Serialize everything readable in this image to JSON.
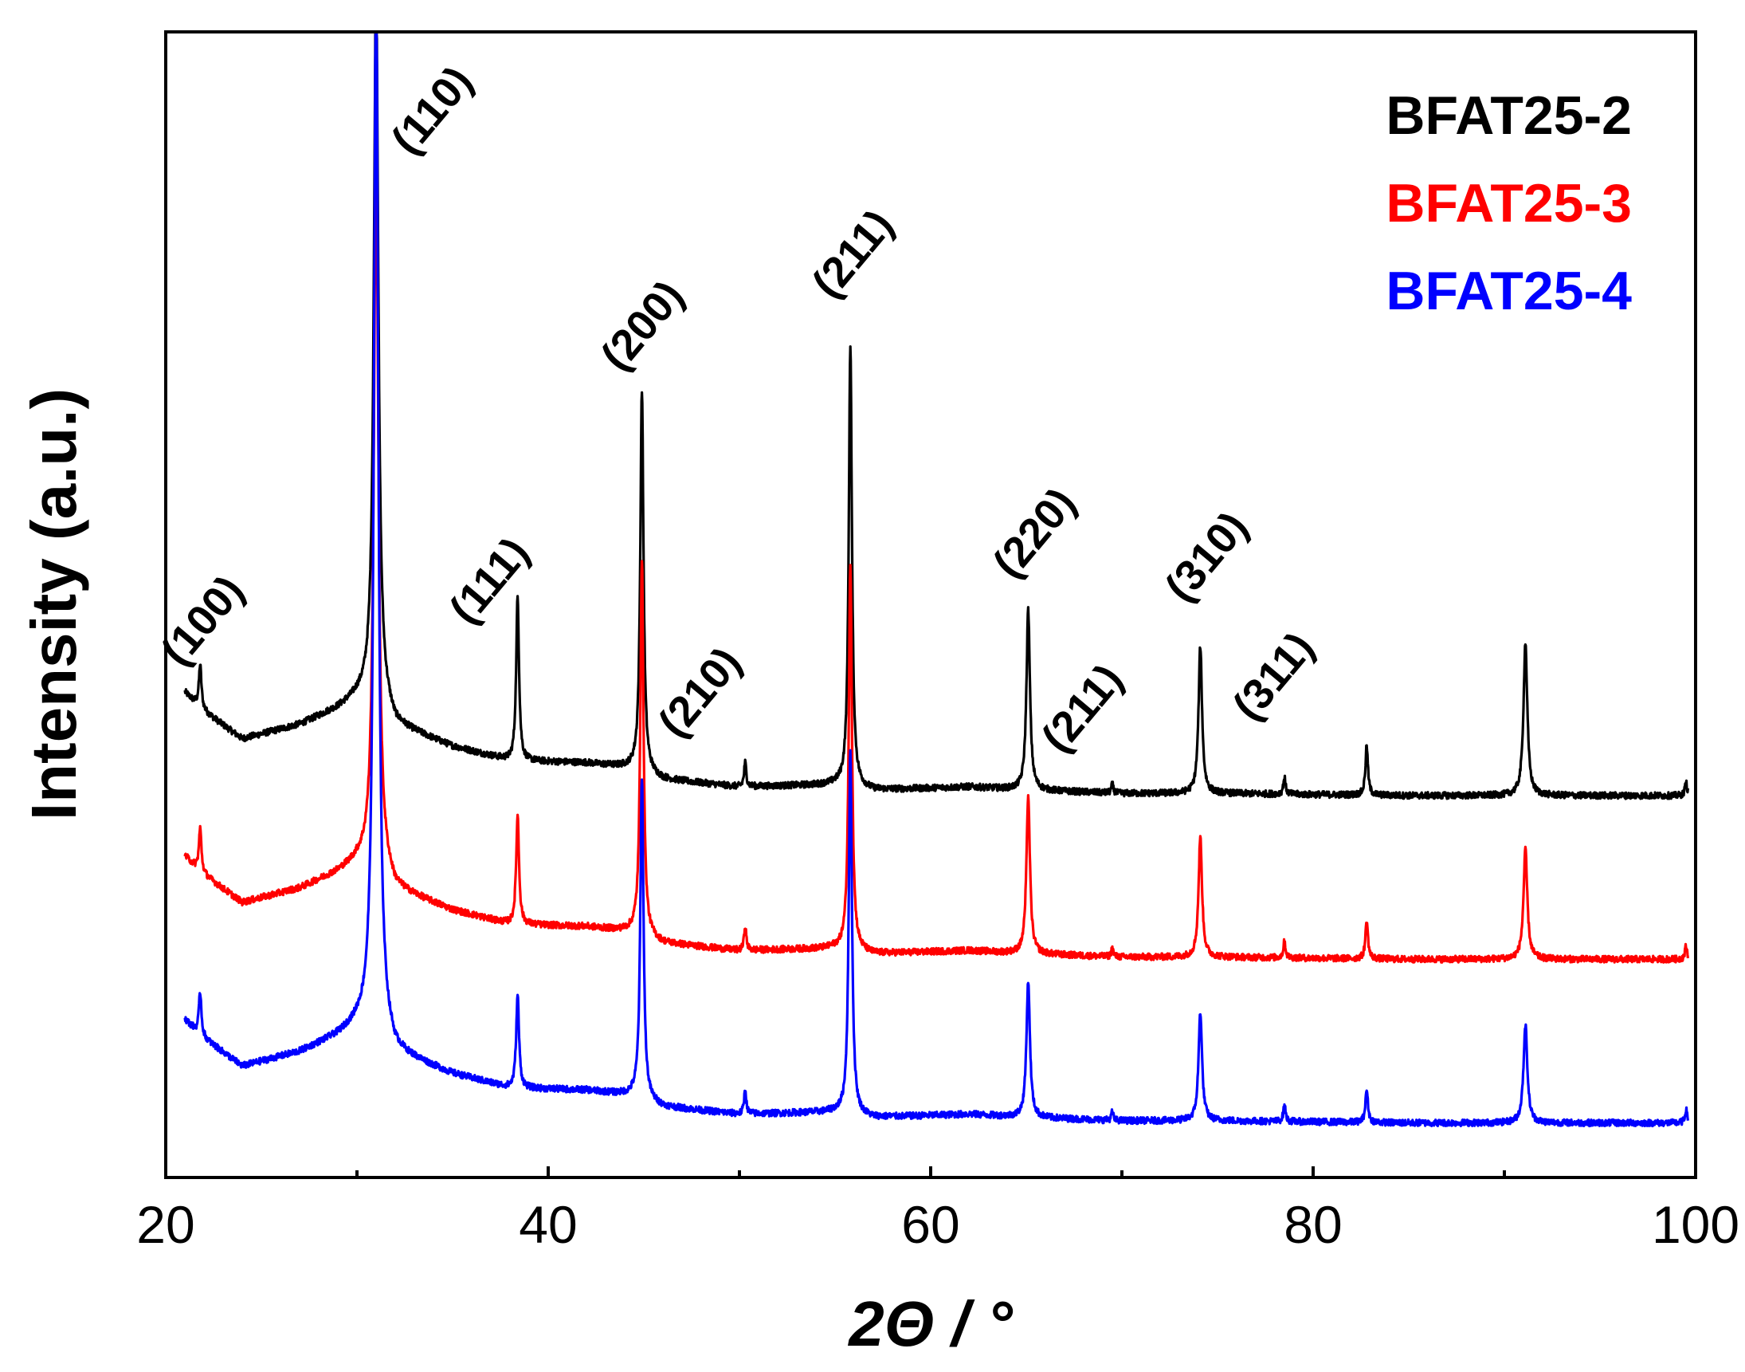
{
  "chart_data": {
    "type": "line",
    "title": "",
    "xlabel": "2Θ / °",
    "ylabel": "Intensity (a.u.)",
    "xlim": [
      20,
      100
    ],
    "ylim": [
      0,
      10.5
    ],
    "x_ticks": [
      20,
      40,
      60,
      80,
      100
    ],
    "x_minor_ticks": [
      30,
      50,
      70,
      90
    ],
    "y_ticks_shown": false,
    "grid": false,
    "legend_position": "top-right",
    "series": [
      {
        "name": "BFAT25-2",
        "color": "#000000",
        "offset": 3.5,
        "baseline_points": [
          [
            21,
            0.95
          ],
          [
            21.8,
            0.8
          ],
          [
            24,
            0.52
          ],
          [
            27,
            0.65
          ],
          [
            29,
            0.8
          ],
          [
            30,
            0.9
          ],
          [
            31,
            0.95
          ],
          [
            32,
            0.65
          ],
          [
            35,
            0.45
          ],
          [
            38,
            0.32
          ],
          [
            42,
            0.3
          ],
          [
            44.5,
            0.25
          ],
          [
            46,
            0.15
          ],
          [
            50,
            0.08
          ],
          [
            55,
            0.1
          ],
          [
            57,
            0.05
          ],
          [
            62,
            0.08
          ],
          [
            65,
            0.05
          ],
          [
            70,
            0.02
          ],
          [
            75,
            0.02
          ],
          [
            80,
            0.01
          ],
          [
            85,
            0.0
          ],
          [
            90,
            0.0
          ],
          [
            99.5,
            0.0
          ]
        ],
        "peaks": [
          [
            21.8,
            0.4,
            0.08
          ],
          [
            31.0,
            6.5,
            0.14
          ],
          [
            38.4,
            1.5,
            0.09
          ],
          [
            44.9,
            3.5,
            0.1
          ],
          [
            50.3,
            0.22,
            0.07
          ],
          [
            55.8,
            4.05,
            0.1
          ],
          [
            65.1,
            1.65,
            0.11
          ],
          [
            69.5,
            0.08,
            0.06
          ],
          [
            74.1,
            1.35,
            0.11
          ],
          [
            78.5,
            0.15,
            0.07
          ],
          [
            82.8,
            0.45,
            0.08
          ],
          [
            91.1,
            1.4,
            0.12
          ],
          [
            99.5,
            0.12,
            0.07
          ]
        ]
      },
      {
        "name": "BFAT25-3",
        "color": "#ff0000",
        "offset": 2.0,
        "baseline_points": [
          [
            21,
            0.95
          ],
          [
            21.8,
            0.8
          ],
          [
            24,
            0.52
          ],
          [
            27,
            0.65
          ],
          [
            29,
            0.8
          ],
          [
            30,
            0.9
          ],
          [
            31,
            0.95
          ],
          [
            32,
            0.65
          ],
          [
            35,
            0.45
          ],
          [
            38,
            0.32
          ],
          [
            42,
            0.3
          ],
          [
            44.5,
            0.25
          ],
          [
            46,
            0.15
          ],
          [
            50,
            0.08
          ],
          [
            55,
            0.1
          ],
          [
            57,
            0.05
          ],
          [
            62,
            0.08
          ],
          [
            65,
            0.05
          ],
          [
            70,
            0.02
          ],
          [
            75,
            0.02
          ],
          [
            80,
            0.01
          ],
          [
            85,
            0.0
          ],
          [
            90,
            0.0
          ],
          [
            99.5,
            0.0
          ]
        ],
        "peaks": [
          [
            21.8,
            0.4,
            0.08
          ],
          [
            31.0,
            6.5,
            0.14
          ],
          [
            38.4,
            1.0,
            0.09
          ],
          [
            44.9,
            3.45,
            0.1
          ],
          [
            50.3,
            0.22,
            0.07
          ],
          [
            55.8,
            3.55,
            0.1
          ],
          [
            65.1,
            1.45,
            0.11
          ],
          [
            69.5,
            0.08,
            0.06
          ],
          [
            74.1,
            1.1,
            0.11
          ],
          [
            78.5,
            0.15,
            0.07
          ],
          [
            82.8,
            0.35,
            0.08
          ],
          [
            91.1,
            1.0,
            0.12
          ],
          [
            99.5,
            0.12,
            0.07
          ]
        ]
      },
      {
        "name": "BFAT25-4",
        "color": "#0000ff",
        "offset": 0.5,
        "baseline_points": [
          [
            21,
            0.95
          ],
          [
            21.8,
            0.8
          ],
          [
            24,
            0.52
          ],
          [
            27,
            0.65
          ],
          [
            29,
            0.8
          ],
          [
            30,
            0.9
          ],
          [
            31,
            0.95
          ],
          [
            32,
            0.65
          ],
          [
            35,
            0.45
          ],
          [
            38,
            0.32
          ],
          [
            42,
            0.3
          ],
          [
            44.5,
            0.25
          ],
          [
            46,
            0.15
          ],
          [
            50,
            0.08
          ],
          [
            55,
            0.1
          ],
          [
            57,
            0.05
          ],
          [
            62,
            0.08
          ],
          [
            65,
            0.05
          ],
          [
            70,
            0.02
          ],
          [
            75,
            0.02
          ],
          [
            80,
            0.01
          ],
          [
            85,
            0.0
          ],
          [
            90,
            0.0
          ],
          [
            99.5,
            0.0
          ]
        ],
        "peaks": [
          [
            21.8,
            0.4,
            0.08
          ],
          [
            31.0,
            9.5,
            0.14
          ],
          [
            38.4,
            0.85,
            0.09
          ],
          [
            44.9,
            2.95,
            0.1
          ],
          [
            50.3,
            0.22,
            0.07
          ],
          [
            55.8,
            3.35,
            0.1
          ],
          [
            65.1,
            1.25,
            0.11
          ],
          [
            69.5,
            0.08,
            0.06
          ],
          [
            74.1,
            1.0,
            0.11
          ],
          [
            78.5,
            0.15,
            0.07
          ],
          [
            82.8,
            0.3,
            0.08
          ],
          [
            91.1,
            0.9,
            0.12
          ],
          [
            99.5,
            0.12,
            0.07
          ]
        ]
      }
    ],
    "annotations": [
      {
        "text": "(100)",
        "x": 22.5
      },
      {
        "text": "(110)",
        "x": 34.5
      },
      {
        "text": "(111)",
        "x": 37.5
      },
      {
        "text": "(200)",
        "x": 45.5
      },
      {
        "text": "(210)",
        "x": 48.5
      },
      {
        "text": "(211)",
        "x": 56.5
      },
      {
        "text": "(220)",
        "x": 66.0
      },
      {
        "text": "(211)",
        "x": 68.5
      },
      {
        "text": "(310)",
        "x": 75.0
      },
      {
        "text": "(311)",
        "x": 78.5
      }
    ]
  }
}
